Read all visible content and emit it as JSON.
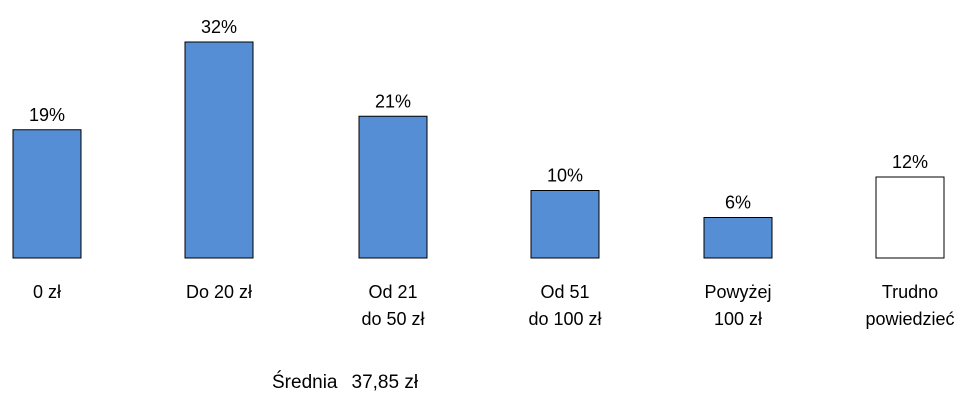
{
  "chart_data": {
    "type": "bar",
    "categories": [
      [
        "0 zł"
      ],
      [
        "Do 20 zł"
      ],
      [
        "Od 21",
        "do 50 zł"
      ],
      [
        "Od 51",
        "do 100 zł"
      ],
      [
        "Powyżej",
        "100 zł"
      ],
      [
        "Trudno",
        "powiedzieć"
      ]
    ],
    "values": [
      19,
      32,
      21,
      10,
      6,
      12
    ],
    "value_labels": [
      "19%",
      "32%",
      "21%",
      "10%",
      "6%",
      "12%"
    ],
    "unit": "%",
    "ylim": [
      0,
      32
    ],
    "grid": false,
    "legend": "none",
    "colors": {
      "bar_fill": "#558ed5",
      "bar_stroke": "#000000",
      "outlier_fill": "#ffffff"
    },
    "outlined_categories": [
      5
    ]
  },
  "summary": {
    "label": "Średnia",
    "value": "37,85 zł"
  }
}
